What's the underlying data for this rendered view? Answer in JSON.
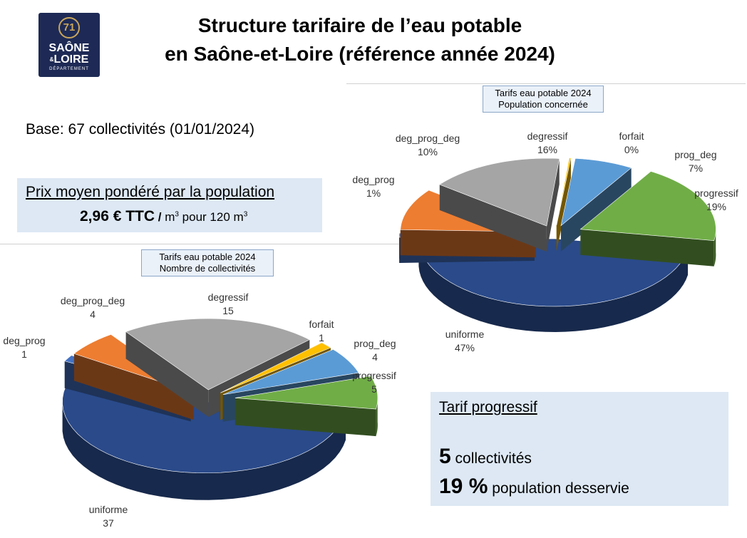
{
  "logo": {
    "number": "71",
    "line1": "SAÔNE",
    "amp": "&",
    "line2": "LOIRE",
    "line3": "DÉPARTEMENT"
  },
  "header": {
    "title_line1": "Structure tarifaire de l’eau potable",
    "title_line2": "en Saône-et-Loire (référence année 2024)"
  },
  "base_text": "Base: 67 collectivités (01/01/2024)",
  "price": {
    "label": "Prix moyen pondéré par la population",
    "value": "2,96 € TTC",
    "slash": " / ",
    "unit1": "m",
    "exp1": "3",
    "mid": " pour 120 m",
    "exp2": "3"
  },
  "progressif_box": {
    "title": "Tarif progressif",
    "count": "5",
    "count_label": " collectivités",
    "pct": "19 %",
    "pct_label": " population desservie"
  },
  "colors": {
    "uniforme": "#2a4a8a",
    "deg_prog": "#4472c4",
    "deg_prog_deg": "#ed7d31",
    "degressif": "#a5a5a5",
    "forfait": "#ffc000",
    "prog_deg": "#5b9bd5",
    "progressif": "#70ad47"
  },
  "chart_data": [
    {
      "type": "pie",
      "title_line1": "Tarifs eau potable 2024",
      "title_line2": "Population concernée",
      "slices": [
        {
          "name": "uniforme",
          "value": 47,
          "label": "47%"
        },
        {
          "name": "deg_prog",
          "value": 1,
          "label": "1%"
        },
        {
          "name": "deg_prog_deg",
          "value": 10,
          "label": "10%"
        },
        {
          "name": "degressif",
          "value": 16,
          "label": "16%"
        },
        {
          "name": "forfait",
          "value": 0,
          "label": "0%"
        },
        {
          "name": "prog_deg",
          "value": 7,
          "label": "7%"
        },
        {
          "name": "progressif",
          "value": 19,
          "label": "19%"
        }
      ]
    },
    {
      "type": "pie",
      "title_line1": "Tarifs eau potable 2024",
      "title_line2": "Nombre de collectivités",
      "slices": [
        {
          "name": "uniforme",
          "value": 37,
          "label": "37"
        },
        {
          "name": "deg_prog",
          "value": 1,
          "label": "1"
        },
        {
          "name": "deg_prog_deg",
          "value": 4,
          "label": "4"
        },
        {
          "name": "degressif",
          "value": 15,
          "label": "15"
        },
        {
          "name": "forfait",
          "value": 1,
          "label": "1"
        },
        {
          "name": "prog_deg",
          "value": 4,
          "label": "4"
        },
        {
          "name": "progressif",
          "value": 5,
          "label": "5"
        }
      ]
    }
  ]
}
